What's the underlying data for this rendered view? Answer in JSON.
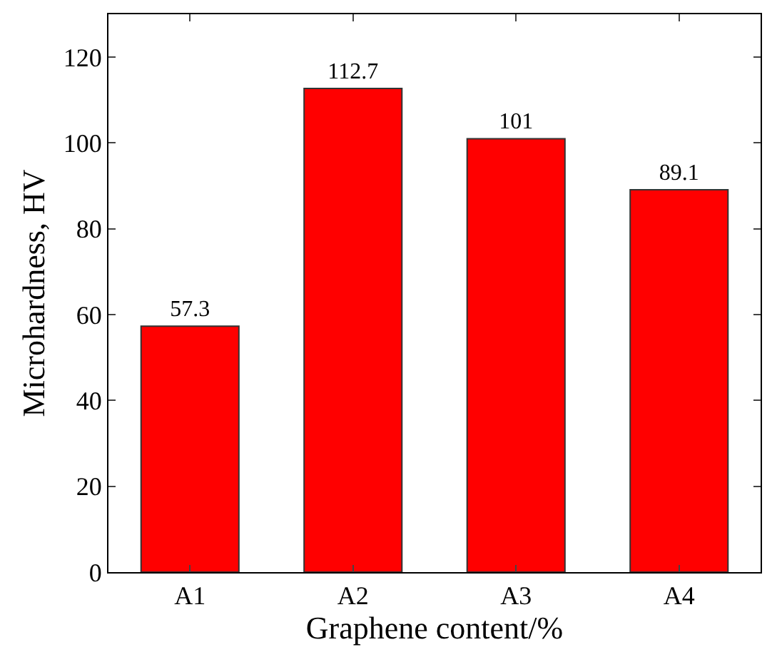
{
  "chart_data": {
    "type": "bar",
    "xlabel": "Graphene content/%",
    "ylabel": "Microhardness, HV",
    "categories": [
      "A1",
      "A2",
      "A3",
      "A4"
    ],
    "values": [
      57.3,
      112.7,
      101,
      89.1
    ],
    "color": "#ff0000",
    "ylim": [
      0,
      130
    ],
    "yticks": [
      0,
      20,
      40,
      60,
      80,
      100,
      120
    ],
    "data_labels": true
  }
}
